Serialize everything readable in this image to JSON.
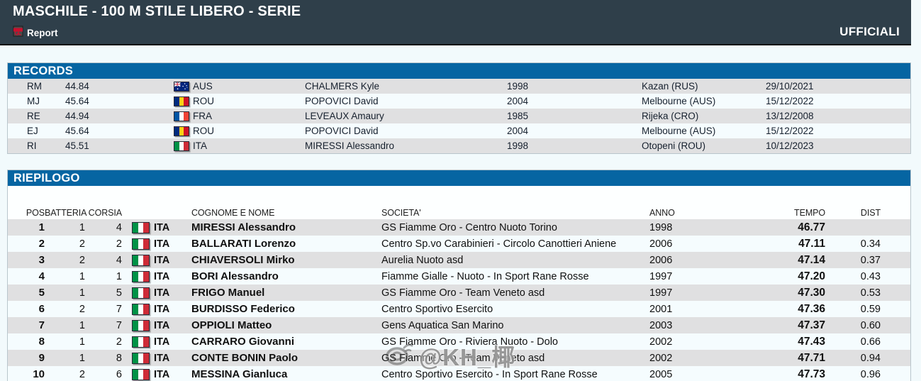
{
  "header": {
    "title": "MASCHILE - 100 M STILE LIBERO - SERIE",
    "report_label": "Report",
    "officials_label": "UFFICIALI"
  },
  "records": {
    "section_title": "RECORDS",
    "rows": [
      {
        "type": "RM",
        "time": "44.84",
        "nation": "AUS",
        "name": "CHALMERS Kyle",
        "year": "1998",
        "place": "Kazan (RUS)",
        "date": "29/10/2021"
      },
      {
        "type": "MJ",
        "time": "45.64",
        "nation": "ROU",
        "name": "POPOVICI David",
        "year": "2004",
        "place": "Melbourne (AUS)",
        "date": "15/12/2022"
      },
      {
        "type": "RE",
        "time": "44.94",
        "nation": "FRA",
        "name": "LEVEAUX Amaury",
        "year": "1985",
        "place": "Rijeka (CRO)",
        "date": "13/12/2008"
      },
      {
        "type": "EJ",
        "time": "45.64",
        "nation": "ROU",
        "name": "POPOVICI David",
        "year": "2004",
        "place": "Melbourne (AUS)",
        "date": "15/12/2022"
      },
      {
        "type": "RI",
        "time": "45.51",
        "nation": "ITA",
        "name": "MIRESSI Alessandro",
        "year": "1998",
        "place": "Otopeni (ROU)",
        "date": "10/12/2023"
      }
    ]
  },
  "summary": {
    "section_title": "RIEPILOGO",
    "columns": {
      "pos": "POS",
      "heat": "BATTERIA",
      "lane": "CORSIA",
      "name": "COGNOME E NOME",
      "club": "SOCIETA'",
      "year": "ANNO",
      "time": "TEMPO",
      "gap": "DIST"
    },
    "rows": [
      {
        "pos": "1",
        "heat": "1",
        "lane": "4",
        "nation": "ITA",
        "name": "MIRESSI Alessandro",
        "club": "GS Fiamme Oro - Centro Nuoto Torino",
        "year": "1998",
        "time": "46.77",
        "gap": ""
      },
      {
        "pos": "2",
        "heat": "2",
        "lane": "2",
        "nation": "ITA",
        "name": "BALLARATI Lorenzo",
        "club": "Centro Sp.vo Carabinieri - Circolo Canottieri Aniene",
        "year": "2006",
        "time": "47.11",
        "gap": "0.34"
      },
      {
        "pos": "3",
        "heat": "2",
        "lane": "4",
        "nation": "ITA",
        "name": "CHIAVERSOLI Mirko",
        "club": "Aurelia Nuoto asd",
        "year": "2006",
        "time": "47.14",
        "gap": "0.37"
      },
      {
        "pos": "4",
        "heat": "1",
        "lane": "1",
        "nation": "ITA",
        "name": "BORI Alessandro",
        "club": "Fiamme Gialle - Nuoto - In Sport Rane Rosse",
        "year": "1997",
        "time": "47.20",
        "gap": "0.43"
      },
      {
        "pos": "5",
        "heat": "1",
        "lane": "5",
        "nation": "ITA",
        "name": "FRIGO Manuel",
        "club": "GS Fiamme Oro - Team Veneto asd",
        "year": "1997",
        "time": "47.30",
        "gap": "0.53"
      },
      {
        "pos": "6",
        "heat": "2",
        "lane": "7",
        "nation": "ITA",
        "name": "BURDISSO Federico",
        "club": "Centro Sportivo Esercito",
        "year": "2001",
        "time": "47.36",
        "gap": "0.59"
      },
      {
        "pos": "7",
        "heat": "1",
        "lane": "7",
        "nation": "ITA",
        "name": "OPPIOLI Matteo",
        "club": "Gens Aquatica San Marino",
        "year": "2003",
        "time": "47.37",
        "gap": "0.60"
      },
      {
        "pos": "8",
        "heat": "1",
        "lane": "2",
        "nation": "ITA",
        "name": "CARRARO Giovanni",
        "club": "GS Fiamme Oro - Riviera Nuoto - Dolo",
        "year": "2002",
        "time": "47.43",
        "gap": "0.66"
      },
      {
        "pos": "9",
        "heat": "1",
        "lane": "8",
        "nation": "ITA",
        "name": "CONTE BONIN Paolo",
        "club": "GS Fiamme Oro - Team Veneto asd",
        "year": "2002",
        "time": "47.71",
        "gap": "0.94"
      },
      {
        "pos": "10",
        "heat": "2",
        "lane": "6",
        "nation": "ITA",
        "name": "MESSINA Gianluca",
        "club": "Centro Sportivo Esercito - In Sport Rane Rosse",
        "year": "2005",
        "time": "47.73",
        "gap": "0.96"
      }
    ]
  },
  "watermark": {
    "text": "@KH_椰"
  },
  "colors": {
    "header_bg": "#2f3f4a",
    "section_bar_bg": "#0665a2",
    "row_shade": "#e0e0e1",
    "row_light": "#f5fcfe",
    "page_bg": "#f2fafc"
  }
}
